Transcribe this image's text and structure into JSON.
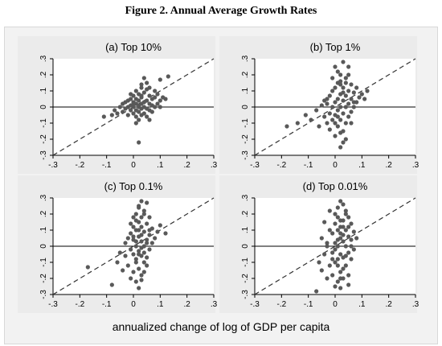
{
  "figure": {
    "title": "Figure 2. Annual Average Growth Rates",
    "xlabel": "annualized change of log of GDP per capita"
  },
  "chart_data": [
    {
      "type": "scatter",
      "title": "(a) Top 10%",
      "xlim": [
        -0.3,
        0.3
      ],
      "ylim": [
        -0.3,
        0.3
      ],
      "xticks": [
        -0.3,
        -0.2,
        -0.1,
        0,
        0.1,
        0.2,
        0.3
      ],
      "xtick_labels": [
        "-.3",
        "-.2",
        "-.1",
        "0",
        ".1",
        ".2",
        ".3"
      ],
      "yticks": [
        -0.3,
        -0.2,
        -0.1,
        0,
        0.1,
        0.2,
        0.3
      ],
      "ytick_labels": [
        "-.3",
        "-.2",
        "-.1",
        "0",
        ".1",
        ".2",
        ".3"
      ],
      "reference_lines": [
        "y=0",
        "45-degree (dashed)"
      ],
      "grid": false,
      "series": [
        {
          "x": [
            -0.11,
            -0.08,
            -0.07,
            -0.06,
            -0.05,
            -0.04,
            -0.04,
            -0.03,
            -0.03,
            -0.02,
            -0.02,
            -0.02,
            -0.01,
            -0.01,
            -0.01,
            0.0,
            0.0,
            0.0,
            0.0,
            0.01,
            0.01,
            0.01,
            0.01,
            0.01,
            0.02,
            0.02,
            0.02,
            0.02,
            0.02,
            0.03,
            0.03,
            0.03,
            0.03,
            0.03,
            0.04,
            0.04,
            0.04,
            0.04,
            0.05,
            0.05,
            0.05,
            0.05,
            0.06,
            0.06,
            0.06,
            0.07,
            0.07,
            0.07,
            0.08,
            0.08,
            0.09,
            0.09,
            0.1,
            0.1,
            0.11,
            0.12,
            0.13,
            0.02,
            0.04,
            0.06,
            0.08,
            0.03,
            0.05,
            0.01,
            -0.01,
            0.02,
            0.06,
            0.1,
            0.0,
            0.03
          ],
          "y": [
            -0.06,
            -0.05,
            -0.02,
            -0.04,
            0.0,
            -0.03,
            0.02,
            -0.01,
            0.03,
            -0.05,
            0.0,
            0.04,
            -0.02,
            0.01,
            0.05,
            -0.04,
            0.0,
            0.03,
            0.07,
            -0.06,
            -0.02,
            0.02,
            0.05,
            0.1,
            -0.08,
            -0.03,
            0.01,
            0.04,
            0.08,
            -0.05,
            -0.01,
            0.02,
            0.06,
            0.12,
            -0.04,
            0.0,
            0.03,
            0.09,
            -0.06,
            -0.01,
            0.04,
            0.15,
            -0.02,
            0.02,
            0.07,
            -0.03,
            0.01,
            0.05,
            0.0,
            0.06,
            0.02,
            0.08,
            0.04,
            0.17,
            0.06,
            0.05,
            0.19,
            -0.22,
            0.18,
            0.12,
            0.1,
            0.14,
            0.11,
            -0.1,
            0.08,
            0.0,
            -0.08,
            0.0,
            0.02,
            0.07
          ]
        }
      ]
    },
    {
      "type": "scatter",
      "title": "(b) Top 1%",
      "xlim": [
        -0.3,
        0.3
      ],
      "ylim": [
        -0.3,
        0.3
      ],
      "xticks": [
        -0.3,
        -0.2,
        -0.1,
        0,
        0.1,
        0.2,
        0.3
      ],
      "xtick_labels": [
        "-.3",
        "-.2",
        "-.1",
        "0",
        ".1",
        ".2",
        ".3"
      ],
      "yticks": [
        -0.3,
        -0.2,
        -0.1,
        0,
        0.1,
        0.2,
        0.3
      ],
      "ytick_labels": [
        "-.3",
        "-.2",
        "-.1",
        "0",
        ".1",
        ".2",
        ".3"
      ],
      "reference_lines": [
        "y=0",
        "45-degree (dashed)"
      ],
      "grid": false,
      "series": [
        {
          "x": [
            -0.18,
            -0.14,
            -0.11,
            -0.09,
            -0.07,
            -0.06,
            -0.05,
            -0.04,
            -0.04,
            -0.03,
            -0.03,
            -0.02,
            -0.02,
            -0.02,
            -0.01,
            -0.01,
            -0.01,
            0.0,
            0.0,
            0.0,
            0.0,
            0.01,
            0.01,
            0.01,
            0.01,
            0.01,
            0.02,
            0.02,
            0.02,
            0.02,
            0.02,
            0.03,
            0.03,
            0.03,
            0.03,
            0.03,
            0.04,
            0.04,
            0.04,
            0.04,
            0.05,
            0.05,
            0.05,
            0.05,
            0.06,
            0.06,
            0.06,
            0.07,
            0.07,
            0.08,
            0.08,
            0.09,
            0.1,
            0.11,
            0.12,
            0.02,
            0.04,
            0.0,
            0.03,
            0.05,
            -0.03,
            0.01,
            0.02,
            0.06,
            -0.01,
            0.03,
            0.07,
            0.0,
            0.04,
            0.02
          ],
          "y": [
            -0.12,
            -0.1,
            -0.05,
            -0.08,
            -0.02,
            -0.12,
            0.01,
            -0.06,
            0.04,
            -0.1,
            0.02,
            -0.14,
            -0.04,
            0.07,
            -0.08,
            0.0,
            0.1,
            -0.18,
            -0.05,
            0.03,
            0.12,
            -0.12,
            -0.02,
            0.05,
            0.15,
            0.22,
            -0.25,
            -0.08,
            0.0,
            0.08,
            0.2,
            -0.15,
            -0.04,
            0.04,
            0.12,
            0.28,
            -0.1,
            0.0,
            0.07,
            0.18,
            -0.06,
            0.02,
            0.1,
            0.25,
            -0.03,
            0.05,
            0.14,
            0.0,
            0.09,
            0.03,
            0.12,
            0.06,
            0.08,
            0.05,
            0.1,
            0.16,
            -0.2,
            0.25,
            -0.22,
            0.2,
            0.05,
            -0.06,
            0.14,
            -0.1,
            0.18,
            0.09,
            0.03,
            -0.1,
            0.15,
            -0.16
          ]
        }
      ]
    },
    {
      "type": "scatter",
      "title": "(c) Top 0.1%",
      "xlim": [
        -0.3,
        0.3
      ],
      "ylim": [
        -0.3,
        0.3
      ],
      "xticks": [
        -0.3,
        -0.2,
        -0.1,
        0,
        0.1,
        0.2,
        0.3
      ],
      "xtick_labels": [
        "-.3",
        "-.2",
        "-.1",
        "0",
        ".1",
        ".2",
        ".3"
      ],
      "yticks": [
        -0.3,
        -0.2,
        -0.1,
        0,
        0.1,
        0.2,
        0.3
      ],
      "ytick_labels": [
        "-.3",
        "-.2",
        "-.1",
        "0",
        ".1",
        ".2",
        ".3"
      ],
      "reference_lines": [
        "y=0",
        "45-degree (dashed)"
      ],
      "grid": false,
      "series": [
        {
          "x": [
            -0.17,
            -0.08,
            -0.06,
            -0.05,
            -0.04,
            -0.03,
            -0.03,
            -0.02,
            -0.02,
            -0.01,
            -0.01,
            -0.01,
            0.0,
            0.0,
            0.0,
            0.0,
            0.01,
            0.01,
            0.01,
            0.01,
            0.01,
            0.02,
            0.02,
            0.02,
            0.02,
            0.02,
            0.03,
            0.03,
            0.03,
            0.03,
            0.03,
            0.04,
            0.04,
            0.04,
            0.04,
            0.05,
            0.05,
            0.05,
            0.05,
            0.06,
            0.06,
            0.06,
            0.07,
            0.07,
            0.08,
            0.09,
            0.1,
            0.12,
            0.02,
            0.04,
            0.0,
            0.03,
            0.01,
            0.05,
            0.02,
            -0.01,
            0.03,
            0.04,
            0.06,
            0.01,
            0.02,
            0.03,
            0.0,
            0.05,
            0.04,
            0.02,
            0.01,
            0.03
          ],
          "y": [
            -0.13,
            -0.24,
            -0.1,
            -0.04,
            -0.15,
            -0.06,
            0.02,
            -0.12,
            0.05,
            -0.2,
            -0.02,
            0.08,
            -0.16,
            -0.05,
            0.04,
            0.12,
            -0.22,
            -0.08,
            0.0,
            0.1,
            0.2,
            -0.14,
            -0.03,
            0.06,
            0.15,
            0.25,
            -0.18,
            -0.06,
            0.03,
            0.12,
            0.28,
            -0.1,
            0.0,
            0.09,
            0.2,
            -0.07,
            0.04,
            0.14,
            0.27,
            -0.02,
            0.07,
            0.18,
            0.02,
            0.11,
            0.05,
            0.09,
            0.13,
            0.08,
            -0.26,
            0.22,
            0.18,
            -0.21,
            0.16,
            -0.12,
            0.24,
            0.14,
            0.18,
            -0.16,
            0.1,
            -0.1,
            -0.05,
            0.07,
            0.06,
            0.02,
            -0.04,
            0.1,
            0.03,
            -0.01
          ]
        }
      ]
    },
    {
      "type": "scatter",
      "title": "(d) Top 0.01%",
      "xlim": [
        -0.3,
        0.3
      ],
      "ylim": [
        -0.3,
        0.3
      ],
      "xticks": [
        -0.3,
        -0.2,
        -0.1,
        0,
        0.1,
        0.2,
        0.3
      ],
      "xtick_labels": [
        "-.3",
        "-.2",
        "-.1",
        "0",
        ".1",
        ".2",
        ".3"
      ],
      "yticks": [
        -0.3,
        -0.2,
        -0.1,
        0,
        0.1,
        0.2,
        0.3
      ],
      "ytick_labels": [
        "-.3",
        "-.2",
        "-.1",
        "0",
        ".1",
        ".2",
        ".3"
      ],
      "reference_lines": [
        "y=0",
        "45-degree (dashed)"
      ],
      "grid": false,
      "series": [
        {
          "x": [
            -0.07,
            -0.06,
            -0.05,
            -0.05,
            -0.04,
            -0.04,
            -0.03,
            -0.03,
            -0.02,
            -0.02,
            -0.02,
            -0.01,
            -0.01,
            -0.01,
            0.0,
            0.0,
            0.0,
            0.0,
            0.01,
            0.01,
            0.01,
            0.01,
            0.01,
            0.02,
            0.02,
            0.02,
            0.02,
            0.02,
            0.03,
            0.03,
            0.03,
            0.03,
            0.03,
            0.04,
            0.04,
            0.04,
            0.04,
            0.05,
            0.05,
            0.05,
            0.05,
            0.06,
            0.06,
            0.06,
            0.07,
            0.07,
            0.08,
            0.02,
            0.04,
            0.0,
            0.03,
            0.01,
            0.05,
            0.02,
            -0.01,
            0.03,
            0.04,
            0.01,
            0.02,
            0.0,
            0.06,
            0.03,
            -0.03,
            0.02,
            0.05,
            0.01
          ],
          "y": [
            -0.28,
            -0.1,
            0.05,
            -0.15,
            -0.05,
            0.15,
            -0.2,
            0.02,
            -0.12,
            0.1,
            0.22,
            -0.18,
            -0.04,
            0.08,
            -0.25,
            -0.1,
            0.02,
            0.14,
            -0.22,
            -0.08,
            0.0,
            0.1,
            0.24,
            -0.16,
            -0.05,
            0.05,
            0.16,
            0.28,
            -0.2,
            -0.07,
            0.03,
            0.12,
            0.26,
            -0.12,
            0.0,
            0.1,
            0.2,
            -0.24,
            -0.04,
            0.06,
            0.18,
            -0.08,
            0.04,
            0.14,
            -0.02,
            0.09,
            0.05,
            -0.26,
            0.22,
            0.2,
            -0.14,
            0.18,
            -0.18,
            0.12,
            -0.08,
            0.07,
            -0.06,
            -0.12,
            0.08,
            -0.02,
            0.0,
            0.16,
            0.0,
            -0.2,
            0.12,
            0.04
          ]
        }
      ]
    }
  ]
}
